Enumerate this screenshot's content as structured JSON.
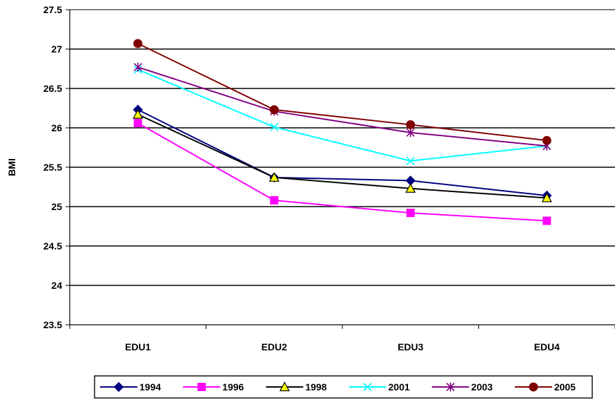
{
  "chart_data": {
    "type": "line",
    "title": "",
    "xlabel": "",
    "ylabel": "BMI",
    "categories": [
      "EDU1",
      "EDU2",
      "EDU3",
      "EDU4"
    ],
    "ylim": [
      23.5,
      27.5
    ],
    "y_ticks": [
      "27.5",
      "27",
      "26.5",
      "26",
      "25.5",
      "25",
      "24.5",
      "24",
      "23.5"
    ],
    "y_tick_values": [
      27.5,
      27,
      26.5,
      26,
      25.5,
      25,
      24.5,
      24,
      23.5
    ],
    "grid": true,
    "legend_position": "bottom",
    "series": [
      {
        "name": "1994",
        "color": "#000080",
        "marker": "diamond",
        "values": [
          26.23,
          25.37,
          25.33,
          25.14
        ]
      },
      {
        "name": "1996",
        "color": "#FF00FF",
        "marker": "square",
        "values": [
          26.06,
          25.08,
          24.92,
          24.82
        ]
      },
      {
        "name": "1998",
        "color": "#000000",
        "marker": "triangle",
        "values": [
          26.17,
          25.37,
          25.23,
          25.11
        ]
      },
      {
        "name": "2001",
        "color": "#00FFFF",
        "marker": "x",
        "values": [
          26.74,
          26.01,
          25.58,
          25.77
        ]
      },
      {
        "name": "2003",
        "color": "#800080",
        "marker": "star",
        "values": [
          26.77,
          26.21,
          25.94,
          25.77
        ]
      },
      {
        "name": "2005",
        "color": "#800000",
        "marker": "circle",
        "values": [
          27.07,
          26.23,
          26.04,
          25.84
        ]
      }
    ]
  }
}
